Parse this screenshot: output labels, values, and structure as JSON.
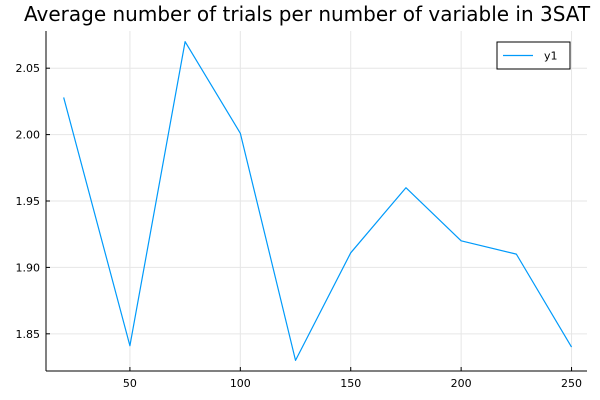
{
  "chart_data": {
    "type": "line",
    "title": "Average number of trials per number of variable in 3SAT",
    "xlabel": "",
    "ylabel": "",
    "xlim": [
      12,
      257
    ],
    "ylim": [
      1.822,
      2.078
    ],
    "x_ticks": [
      50,
      100,
      150,
      200,
      250
    ],
    "y_ticks": [
      1.85,
      1.9,
      1.95,
      2.0,
      2.05
    ],
    "x_tick_labels": [
      "50",
      "100",
      "150",
      "200",
      "250"
    ],
    "y_tick_labels": [
      "1.85",
      "1.90",
      "1.95",
      "2.00",
      "2.05"
    ],
    "grid": true,
    "legend": "top-right",
    "series": [
      {
        "name": "y1",
        "color": "#009AFA",
        "x": [
          20,
          50,
          75,
          100,
          125,
          150,
          175,
          200,
          225,
          250
        ],
        "y": [
          2.028,
          1.841,
          2.07,
          2.001,
          1.83,
          1.911,
          1.96,
          1.92,
          1.91,
          1.84
        ]
      }
    ]
  }
}
